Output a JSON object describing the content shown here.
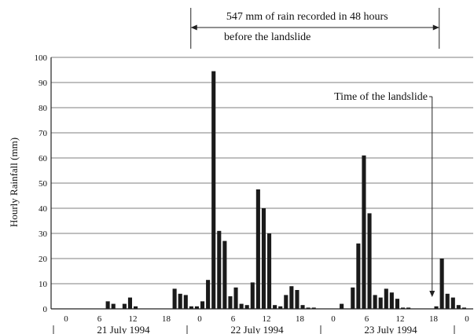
{
  "chart_data": {
    "type": "bar",
    "ylabel": "Hourly Rainfall (mm)",
    "xlabel": "",
    "ylim": [
      0,
      100
    ],
    "y_ticks": [
      0,
      10,
      20,
      30,
      40,
      50,
      60,
      70,
      80,
      90,
      100
    ],
    "grid": true,
    "bar_color": "#1a1a1a",
    "x_range_hours": [
      0,
      72
    ],
    "x_tick_labels": [
      {
        "hour": 0,
        "label": "0"
      },
      {
        "hour": 6,
        "label": "6"
      },
      {
        "hour": 12,
        "label": "12"
      },
      {
        "hour": 18,
        "label": "18"
      },
      {
        "hour": 24,
        "label": "0"
      },
      {
        "hour": 30,
        "label": "6"
      },
      {
        "hour": 36,
        "label": "12"
      },
      {
        "hour": 42,
        "label": "18"
      },
      {
        "hour": 48,
        "label": "0"
      },
      {
        "hour": 54,
        "label": "6"
      },
      {
        "hour": 60,
        "label": "12"
      },
      {
        "hour": 66,
        "label": "18"
      },
      {
        "hour": 72,
        "label": "0"
      }
    ],
    "day_labels": [
      {
        "start_hour": 0,
        "end_hour": 24,
        "label": "21 July 1994"
      },
      {
        "start_hour": 24,
        "end_hour": 48,
        "label": "22 July 1994"
      },
      {
        "start_hour": 48,
        "end_hour": 72,
        "label": "23 July 1994"
      }
    ],
    "hours": [
      8,
      9,
      11,
      12,
      13,
      20,
      21,
      22,
      23,
      24,
      25,
      26,
      27,
      28,
      29,
      30,
      31,
      32,
      33,
      34,
      35,
      36,
      37,
      38,
      39,
      40,
      41,
      42,
      43,
      44,
      45,
      50,
      52,
      53,
      54,
      55,
      56,
      57,
      58,
      59,
      60,
      61,
      62,
      67,
      68,
      69,
      70,
      71,
      72
    ],
    "values": [
      3,
      2,
      2,
      4.5,
      1,
      8,
      6,
      5.5,
      1,
      1,
      3,
      11.5,
      94.5,
      31,
      27,
      5,
      8.5,
      2,
      1.5,
      10.5,
      47.5,
      40,
      30,
      1.5,
      1,
      5.5,
      9,
      7.5,
      1.5,
      0.5,
      0.5,
      2,
      8.5,
      26,
      61,
      38,
      5.5,
      4.5,
      8,
      6.5,
      4,
      0.5,
      0.5,
      1,
      20,
      6,
      4.5,
      1.5,
      0.5
    ],
    "annotations": {
      "span_label_line1": "547  mm of rain recorded in 48 hours",
      "span_label_line2": "before the landslide",
      "span_start_hour": 21,
      "span_end_hour": 69,
      "event_label": "Time of the landslide",
      "event_hour": 69
    }
  }
}
